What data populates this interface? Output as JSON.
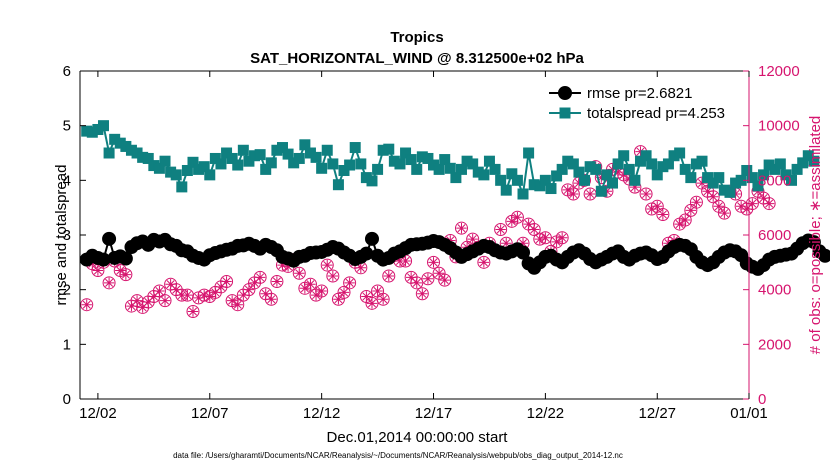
{
  "chart_data": {
    "type": "line",
    "title": "Tropics",
    "subtitle": "SAT_HORIZONTAL_WIND @ 8.312500e+02 hPa",
    "xlabel": "Dec.01,2014 00:00:00 start",
    "ylabel": "rmse and totalspread",
    "ylabel_right": "# of obs: o=possible; ∗=assimilated",
    "footnote": "data file: /Users/gharamti/Documents/NCAR/Reanalysis/~/Documents/NCAR/Reanalysis/webpub/obs_diag_output_2014-12.nc",
    "xlim": [
      1.2,
      31.1
    ],
    "ylim": [
      0,
      6
    ],
    "ylim_right": [
      0,
      12000
    ],
    "x_ticks": [
      {
        "x": 2,
        "label": "12/02"
      },
      {
        "x": 7,
        "label": "12/07"
      },
      {
        "x": 12,
        "label": "12/12"
      },
      {
        "x": 17,
        "label": "12/17"
      },
      {
        "x": 22,
        "label": "12/22"
      },
      {
        "x": 27,
        "label": "12/27"
      },
      {
        "x": 32,
        "label": "01/01"
      }
    ],
    "y_ticks": [
      "0",
      "1",
      "2",
      "3",
      "4",
      "5",
      "6"
    ],
    "y_ticks_right": [
      "0",
      "2000",
      "4000",
      "6000",
      "8000",
      "10000",
      "12000"
    ],
    "legend_position": "top-right",
    "time": {
      "x_start": 1.5,
      "x_step": 0.25
    },
    "series": [
      {
        "name": "rmse pr=2.6821",
        "axis": "left",
        "color": "#000000",
        "marker": "circle",
        "values": [
          2.55,
          2.62,
          2.58,
          2.55,
          2.93,
          2.58,
          2.61,
          2.57,
          2.78,
          2.85,
          2.88,
          2.82,
          2.91,
          2.88,
          2.91,
          2.83,
          2.8,
          2.72,
          2.7,
          2.62,
          2.58,
          2.55,
          2.63,
          2.67,
          2.7,
          2.73,
          2.75,
          2.8,
          2.81,
          2.84,
          2.8,
          2.75,
          2.82,
          2.78,
          2.72,
          2.6,
          2.57,
          2.53,
          2.6,
          2.62,
          2.67,
          2.68,
          2.69,
          2.73,
          2.78,
          2.75,
          2.68,
          2.62,
          2.56,
          2.6,
          2.66,
          2.93,
          2.62,
          2.55,
          2.58,
          2.66,
          2.7,
          2.76,
          2.82,
          2.83,
          2.84,
          2.86,
          2.89,
          2.87,
          2.82,
          2.76,
          2.68,
          2.6,
          2.65,
          2.7,
          2.75,
          2.8,
          2.78,
          2.72,
          2.68,
          2.66,
          2.7,
          2.74,
          2.68,
          2.48,
          2.4,
          2.5,
          2.6,
          2.62,
          2.55,
          2.5,
          2.6,
          2.68,
          2.72,
          2.66,
          2.56,
          2.5,
          2.55,
          2.6,
          2.66,
          2.7,
          2.6,
          2.55,
          2.62,
          2.66,
          2.68,
          2.63,
          2.56,
          2.6,
          2.7,
          2.78,
          2.82,
          2.8,
          2.74,
          2.6,
          2.5,
          2.45,
          2.5,
          2.6,
          2.68,
          2.72,
          2.7,
          2.63,
          2.48,
          2.42,
          2.38,
          2.45,
          2.55,
          2.6,
          2.62,
          2.64,
          2.66,
          2.75,
          2.85,
          2.9,
          2.87,
          2.7,
          2.62
        ]
      },
      {
        "name": "totalspread pr=4.253",
        "axis": "left",
        "color": "#0f8080",
        "marker": "square",
        "values": [
          4.9,
          4.88,
          4.93,
          5.0,
          4.5,
          4.75,
          4.68,
          4.62,
          4.55,
          4.5,
          4.42,
          4.4,
          4.27,
          4.22,
          4.35,
          4.15,
          4.1,
          3.88,
          4.18,
          4.33,
          4.2,
          4.25,
          4.1,
          4.4,
          4.3,
          4.5,
          4.4,
          4.28,
          4.55,
          4.35,
          4.45,
          4.47,
          4.2,
          4.32,
          4.55,
          4.6,
          4.48,
          4.32,
          4.4,
          4.65,
          4.5,
          4.42,
          4.22,
          4.55,
          4.3,
          3.92,
          4.18,
          4.28,
          4.6,
          4.3,
          4.05,
          3.99,
          4.2,
          4.55,
          4.57,
          4.35,
          4.3,
          4.5,
          4.38,
          4.2,
          4.43,
          4.4,
          4.28,
          4.2,
          4.38,
          4.22,
          4.05,
          4.2,
          4.35,
          4.3,
          4.15,
          4.1,
          4.35,
          4.2,
          4.0,
          3.82,
          4.12,
          4.0,
          3.75,
          4.5,
          3.92,
          3.9,
          4.0,
          3.85,
          4.08,
          4.2,
          4.35,
          4.3,
          4.15,
          4.0,
          4.25,
          4.2,
          3.8,
          4.1,
          3.95,
          4.3,
          4.45,
          4.2,
          4.0,
          4.35,
          4.45,
          4.3,
          4.1,
          4.25,
          4.3,
          4.45,
          4.5,
          4.2,
          4.05,
          4.3,
          4.35,
          4.05,
          3.95,
          4.05,
          3.82,
          3.78,
          3.95,
          4.0,
          4.18,
          4.05,
          3.9,
          4.1,
          4.28,
          4.2,
          4.3,
          4.1,
          4.0,
          4.2,
          4.32,
          4.45,
          4.35
        ]
      },
      {
        "name": "possible obs",
        "axis": "right",
        "color": "#d6146e",
        "marker": "circle-open",
        "values": [
          3450,
          4950,
          4700,
          5000,
          4250,
          5050,
          4700,
          4550,
          3400,
          3600,
          3350,
          3550,
          3750,
          3950,
          3600,
          4200,
          4000,
          3800,
          3800,
          3200,
          3700,
          3800,
          3750,
          3900,
          4100,
          4300,
          3600,
          3450,
          3800,
          4000,
          4250,
          4450,
          3850,
          3650,
          4300,
          4900,
          4850,
          5100,
          4600,
          4050,
          4200,
          3800,
          3950,
          4900,
          4500,
          3650,
          3900,
          4250,
          5000,
          4800,
          3750,
          3500,
          3950,
          3650,
          4500,
          5250,
          5050,
          5050,
          4450,
          4250,
          3850,
          4400,
          5000,
          4600,
          4350,
          5800,
          5200,
          6250,
          5550,
          5850,
          5550,
          5000,
          5700,
          5450,
          6200,
          5700,
          6500,
          6650,
          5700,
          6400,
          6200,
          5850,
          5900,
          5400,
          5750,
          5900,
          7650,
          7500,
          7900,
          8000,
          7500,
          8500,
          8100,
          7600,
          8400,
          8300,
          8200,
          8050,
          7750,
          9050,
          7500,
          6950,
          7050,
          6750,
          5700,
          5800,
          6400,
          6550,
          6900,
          7200,
          7900,
          7600,
          7400,
          7050,
          6800,
          7600,
          7500,
          7050,
          6950,
          7150,
          7600,
          7350,
          7150,
          7000,
          7100,
          7350,
          5300,
          7150,
          5750,
          5500,
          5300,
          4400,
          4500,
          5400,
          5550,
          5600,
          0
        ]
      },
      {
        "name": "assimilated obs",
        "axis": "right",
        "color": "#d6146e",
        "marker": "asterisk",
        "values": [
          3450,
          4950,
          4700,
          5000,
          4250,
          5050,
          4700,
          4550,
          3400,
          3600,
          3350,
          3550,
          3750,
          3950,
          3600,
          4200,
          4000,
          3800,
          3800,
          3200,
          3700,
          3800,
          3750,
          3900,
          4100,
          4300,
          3600,
          3450,
          3800,
          4000,
          4250,
          4450,
          3850,
          3650,
          4300,
          4900,
          4850,
          5100,
          4600,
          4050,
          4200,
          3800,
          3950,
          4900,
          4500,
          3650,
          3900,
          4250,
          5000,
          4800,
          3750,
          3500,
          3950,
          3650,
          4500,
          5250,
          5050,
          5050,
          4450,
          4250,
          3850,
          4400,
          5000,
          4600,
          4350,
          5800,
          5200,
          6250,
          5550,
          5850,
          5550,
          5000,
          5700,
          5450,
          6200,
          5700,
          6500,
          6650,
          5700,
          6400,
          6200,
          5850,
          5900,
          5400,
          5750,
          5900,
          7650,
          7500,
          7900,
          8000,
          7500,
          8500,
          8100,
          7600,
          8400,
          8300,
          8200,
          8050,
          7750,
          9050,
          7500,
          6950,
          7050,
          6750,
          5700,
          5800,
          6400,
          6550,
          6900,
          7200,
          7900,
          7600,
          7400,
          7050,
          6800,
          7600,
          7500,
          7050,
          6950,
          7150,
          7600,
          7350,
          7150,
          7000,
          7100,
          7350,
          5300,
          7150,
          5750,
          5500,
          5300,
          4400,
          4500,
          5400,
          5550,
          5600,
          0
        ]
      }
    ]
  }
}
